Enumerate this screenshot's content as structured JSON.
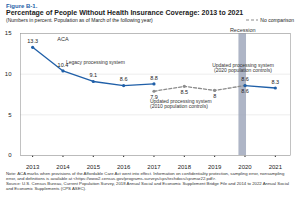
{
  "chart_data": {
    "type": "line",
    "figure_label": "Figure B-1.",
    "title": "Percentage of People Without Health Insurance Coverage: 2013 to 2021",
    "subtitle": "(Numbers in percent. Population as of March of the following year)",
    "dashed_line_label": "No comparison",
    "xlim": [
      2012.6,
      2021.5
    ],
    "xticks": [
      2013,
      2014,
      2015,
      2016,
      2017,
      2018,
      2019,
      2020,
      2021
    ],
    "ylim": [
      0,
      15
    ],
    "yticks": [
      0,
      5,
      10,
      15
    ],
    "grid": true,
    "data_labels": true,
    "series": [
      {
        "name": "Legacy processing system",
        "color": "#1f5fa8",
        "line_style": "solid",
        "marker": "circle",
        "x": [
          2013,
          2014,
          2015,
          2016,
          2017
        ],
        "values": [
          13.3,
          10.4,
          9.1,
          8.6,
          8.8
        ]
      },
      {
        "name": "Updated processing system (2010 population controls)",
        "color": "#8c8c8c",
        "line_style": "dashed",
        "marker": "circle",
        "x": [
          2017,
          2018,
          2019,
          2020
        ],
        "values": [
          7.9,
          8.5,
          8.0,
          8.6
        ]
      },
      {
        "name": "Updated processing system (2020 population controls)",
        "color": "#1f5fa8",
        "line_style": "solid",
        "marker": "circle",
        "x": [
          2020,
          2021
        ],
        "values": [
          8.6,
          8.3
        ]
      }
    ],
    "events": [
      {
        "label": "ACA",
        "x": 2014
      }
    ],
    "shaded": [
      {
        "label": "Recession",
        "x1": 2019.8,
        "x2": 2020.05
      }
    ],
    "note": "Note: ACA marks when provisions of the Affordable Care Act went into effect. Information on confidentiality protection, sampling error, nonsampling error, and definitions is available at <https://www2.census.gov/programs-surveys/cps/techdocs/cpsmar22.pdf>.",
    "source": "Source: U.S. Census Bureau, Current Population Survey, 2018 Annual Social and Economic Supplement Bridge File and 2014 to 2022 Annual Social and Economic Supplements (CPS ASEC)."
  }
}
